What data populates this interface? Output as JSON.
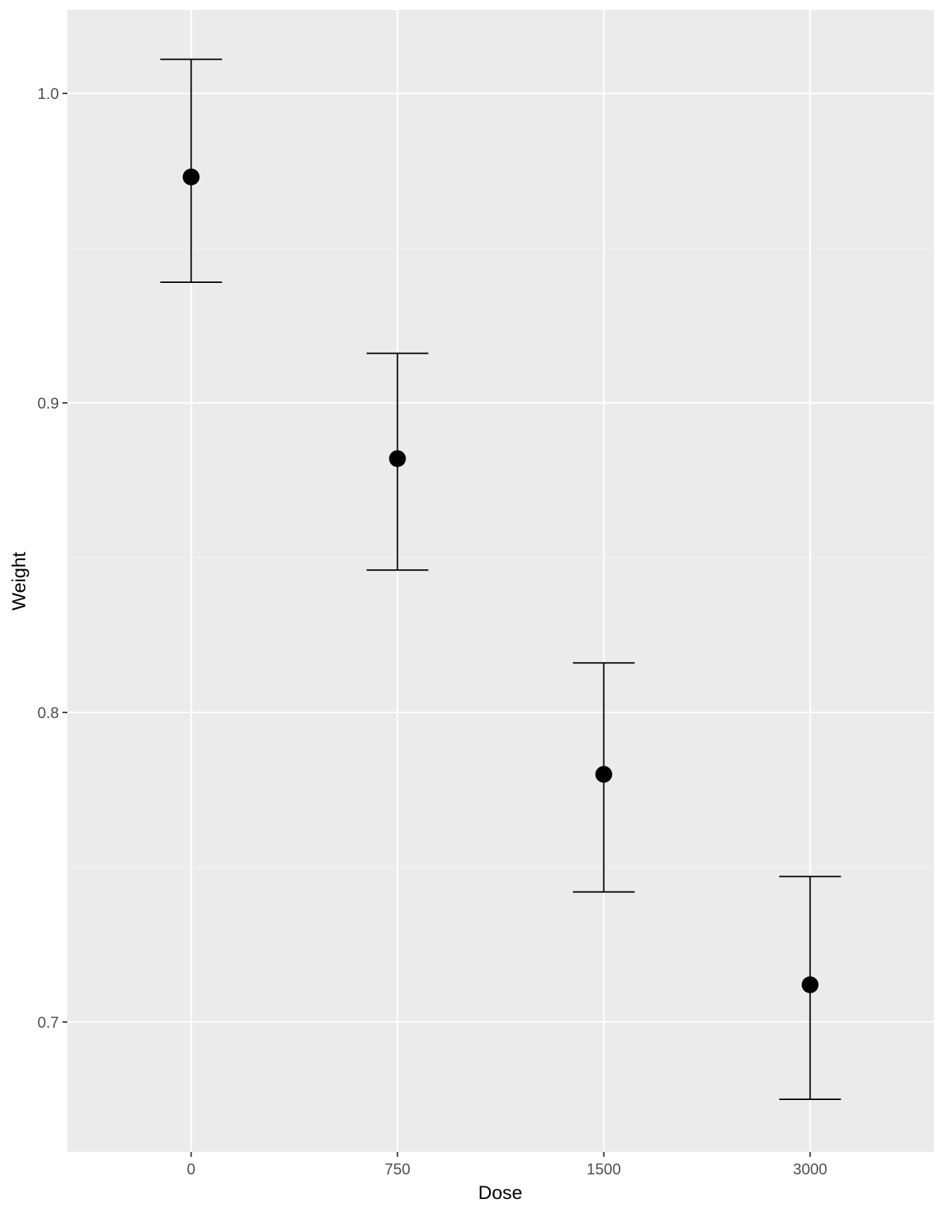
{
  "chart_data": {
    "type": "scatter",
    "subtype": "point-with-errorbars",
    "xlabel": "Dose",
    "ylabel": "Weight",
    "categories": [
      "0",
      "750",
      "1500",
      "3000"
    ],
    "series": [
      {
        "values": [
          0.973,
          0.882,
          0.78,
          0.712
        ],
        "lower": [
          0.939,
          0.846,
          0.742,
          0.675
        ],
        "upper": [
          1.011,
          0.916,
          0.816,
          0.747
        ]
      }
    ],
    "ylim": [
      0.658,
      1.027
    ],
    "yticks": [
      0.7,
      0.8,
      0.9,
      1.0
    ],
    "ytick_labels": [
      "0.7",
      "0.8",
      "0.9",
      "1.0"
    ],
    "grid": true,
    "legend": "none",
    "colors": {
      "panel_background": "#ebebeb",
      "grid_major": "#ffffff",
      "grid_minor": "#f5f5f5",
      "marks": "#000000",
      "tick_text": "#4d4d4d",
      "axis_title_text": "#000000"
    }
  }
}
